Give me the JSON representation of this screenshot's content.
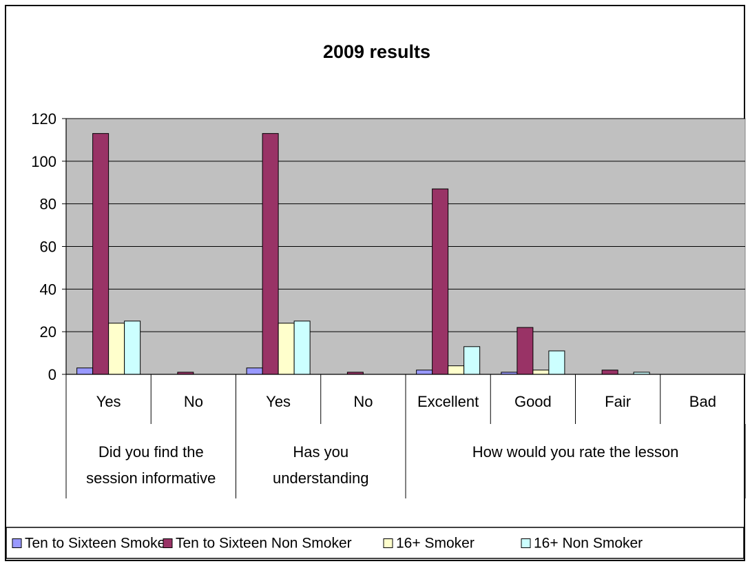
{
  "chart_data": {
    "type": "bar",
    "title": "2009 results",
    "xlabel": "",
    "ylabel": "",
    "ylim": [
      0,
      120
    ],
    "yticks": [
      0,
      20,
      40,
      60,
      80,
      100,
      120
    ],
    "grid": true,
    "legend_position": "bottom",
    "plot_background": "#c0c0c0",
    "categories": [
      "Yes",
      "No",
      "Yes",
      "No",
      "Excellent",
      "Good",
      "Fair",
      "Bad"
    ],
    "groups": [
      {
        "label": [
          "Did you find the",
          "session informative"
        ],
        "span": 2
      },
      {
        "label": [
          "Has you",
          "understanding"
        ],
        "span": 2
      },
      {
        "label": [
          "How would you rate the lesson"
        ],
        "span": 4
      }
    ],
    "series": [
      {
        "name": "Ten to Sixteen Smoker",
        "color": "#9999ff",
        "values": [
          3,
          0,
          3,
          0,
          2,
          1,
          0,
          0
        ]
      },
      {
        "name": "Ten to Sixteen Non Smoker",
        "color": "#993366",
        "values": [
          113,
          1,
          113,
          1,
          87,
          22,
          2,
          0
        ]
      },
      {
        "name": "16+ Smoker",
        "color": "#ffffcc",
        "values": [
          24,
          0,
          24,
          0,
          4,
          2,
          0,
          0
        ]
      },
      {
        "name": "16+ Non Smoker",
        "color": "#ccffff",
        "values": [
          25,
          0,
          25,
          0,
          13,
          11,
          1,
          0
        ]
      }
    ]
  }
}
